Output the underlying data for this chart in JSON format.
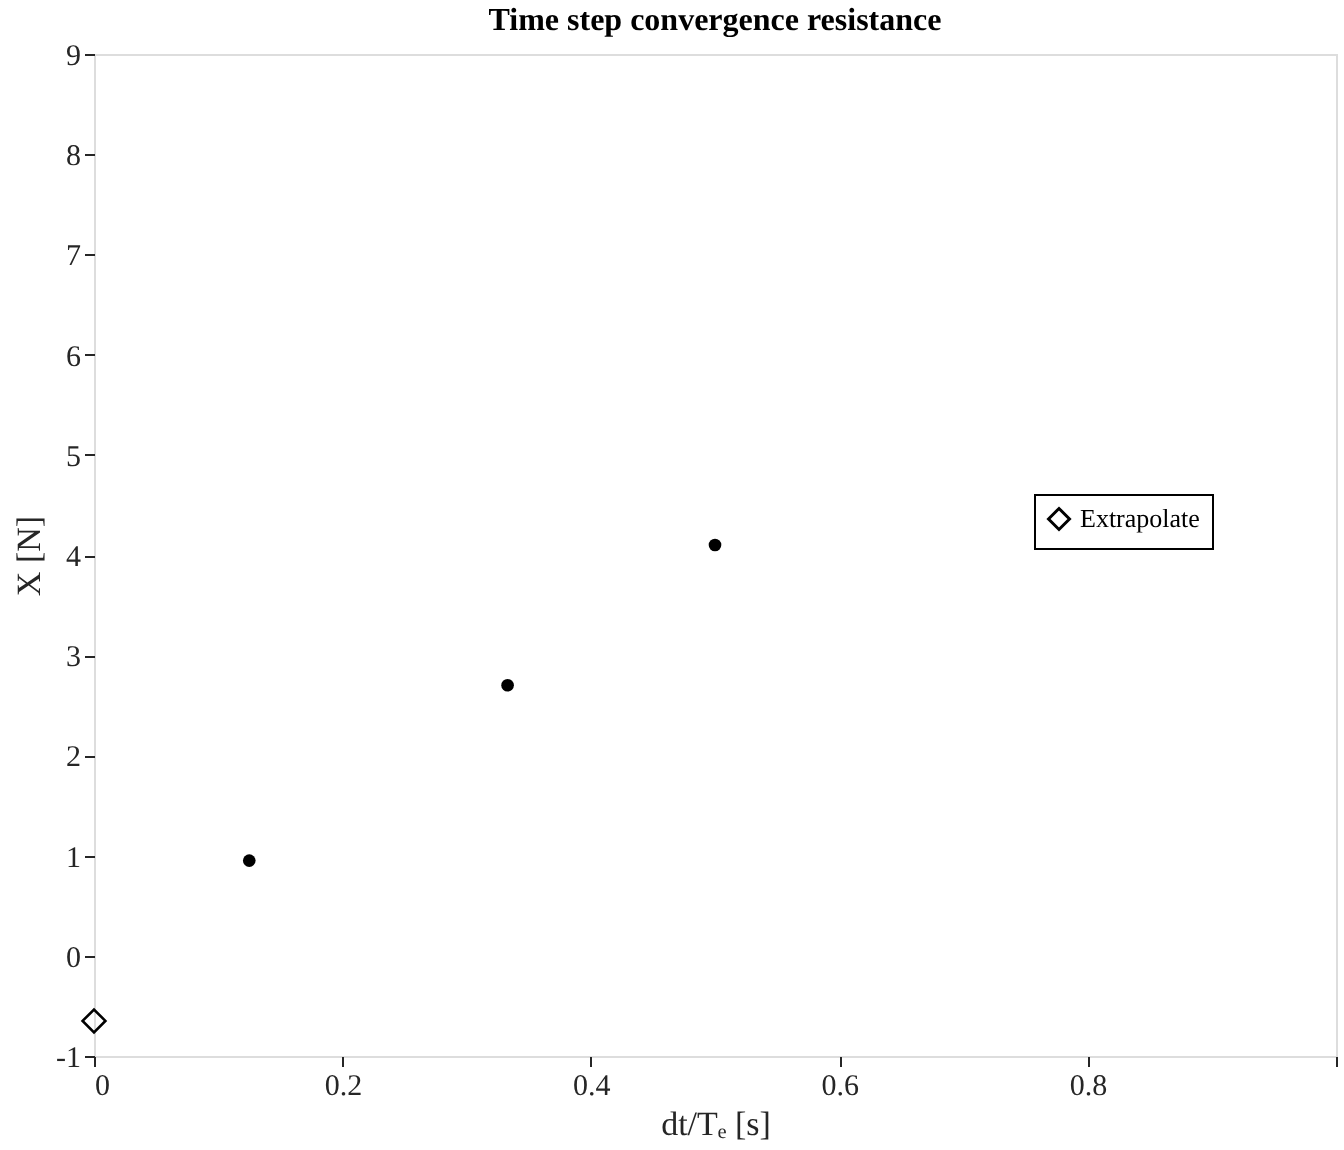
{
  "chart_data": {
    "type": "scatter",
    "title": "Time step convergence resistance",
    "xlabel": "dt/Tₑ [s]",
    "ylabel": "X [N]",
    "series": [
      {
        "x": [
          0.125,
          0.333,
          0.5
        ],
        "values": [
          0.95,
          2.7,
          4.1
        ],
        "color": "#000000",
        "marker": "circle"
      },
      {
        "name": "Extrapolate",
        "x": [
          0
        ],
        "values": [
          -0.65
        ],
        "color": "#000000",
        "marker": "diamond"
      }
    ],
    "xlim": [
      0,
      1
    ],
    "xticks": [
      0,
      0.2,
      0.4,
      0.6,
      0.8,
      {
        "value": 1,
        "label": null
      }
    ],
    "ylim": [
      -1,
      9
    ],
    "yticks": [
      -1,
      0,
      1,
      2,
      3,
      4,
      5,
      6,
      7,
      8,
      9
    ],
    "grid": false,
    "legend": "right"
  }
}
